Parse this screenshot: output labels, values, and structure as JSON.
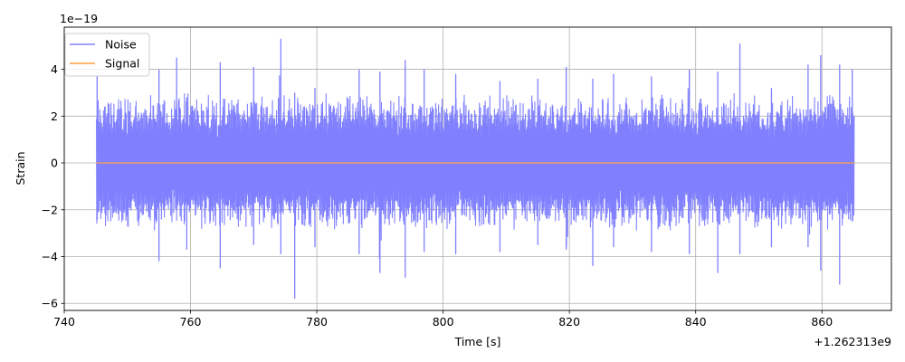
{
  "chart_data": {
    "type": "line",
    "title": "",
    "xlabel": "Time [s]",
    "ylabel": "Strain",
    "x_offset_label": "+1.262313e9",
    "y_scale_label": "1e−19",
    "xlim": [
      740,
      871
    ],
    "ylim": [
      -6.3,
      5.8
    ],
    "x_ticks": [
      740,
      760,
      780,
      800,
      820,
      840,
      860
    ],
    "x_tick_labels": [
      "740",
      "760",
      "780",
      "800",
      "820",
      "840",
      "860"
    ],
    "y_ticks": [
      -6,
      -4,
      -2,
      0,
      2,
      4
    ],
    "y_tick_labels": [
      "−6",
      "−4",
      "−2",
      "0",
      "2",
      "4"
    ],
    "grid": true,
    "legend_position": "upper-left",
    "series": [
      {
        "name": "Noise",
        "color": "#8080ff",
        "x_range": [
          745.1,
          865.1
        ],
        "envelope": {
          "x": [
            745.2,
            755.0,
            757.8,
            759.4,
            764.7,
            770.0,
            774.3,
            776.5,
            779.7,
            786.7,
            790.0,
            794.0,
            797.0,
            802.0,
            809.0,
            815.0,
            819.5,
            823.7,
            827.0,
            833.0,
            839.0,
            843.5,
            847.0,
            852.0,
            857.8,
            859.8,
            862.8,
            864.8
          ],
          "high": [
            3.7,
            4.0,
            4.5,
            2.8,
            4.3,
            4.1,
            5.3,
            3.0,
            3.2,
            4.0,
            3.9,
            4.4,
            4.0,
            3.8,
            3.5,
            3.6,
            4.1,
            3.6,
            3.8,
            3.7,
            4.0,
            3.9,
            5.1,
            3.2,
            4.2,
            4.6,
            4.2,
            4.0
          ],
          "low": [
            -2.3,
            -4.2,
            -2.0,
            -3.7,
            -4.5,
            -3.5,
            -3.9,
            -5.8,
            -3.6,
            -3.9,
            -4.7,
            -4.9,
            -3.8,
            -3.9,
            -3.8,
            -3.5,
            -3.7,
            -4.4,
            -3.6,
            -3.8,
            -3.9,
            -4.7,
            -3.9,
            -3.6,
            -3.6,
            -4.6,
            -5.2,
            -2.5
          ]
        }
      },
      {
        "name": "Signal",
        "color": "#ff9f40",
        "x": [
          745.1,
          865.1
        ],
        "y": [
          0,
          0
        ]
      }
    ]
  }
}
